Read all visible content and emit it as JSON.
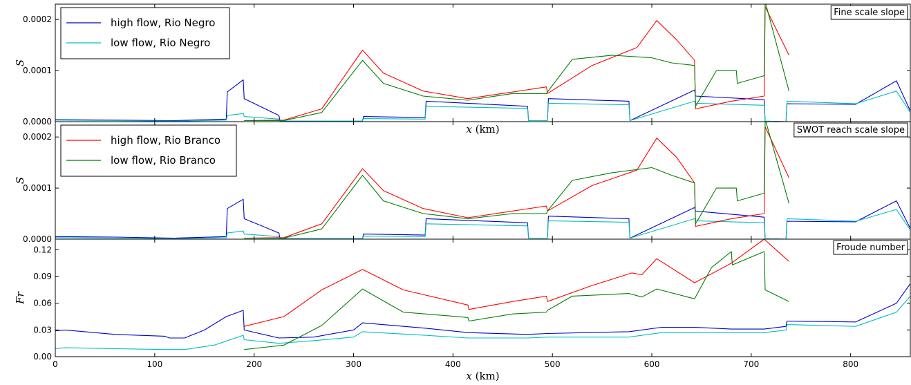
{
  "colors": {
    "high_negro": "#0000cc",
    "low_negro": "#00bfbf",
    "high_branco": "#ff0000",
    "low_branco": "#007f00"
  },
  "legend_top": [
    {
      "label": "high flow, Rio Negro",
      "color": "#0000cc"
    },
    {
      "label": "low flow, Rio Negro",
      "color": "#00bfbf"
    }
  ],
  "legend_mid": [
    {
      "label": "high flow, Rio Branco",
      "color": "#ff0000"
    },
    {
      "label": "low flow, Rio Branco",
      "color": "#007f00"
    }
  ],
  "chart_data": [
    {
      "type": "line",
      "title": "Fine scale slope",
      "xlabel": "x (km)",
      "ylabel": "S",
      "xlim": [
        0,
        860
      ],
      "ylim": [
        0,
        0.00023
      ],
      "yticks": [
        0.0,
        0.0001,
        0.0002
      ],
      "yticklabels": [
        "0.0000",
        "0.0001",
        "0.0002"
      ],
      "legend_placement": "top-left",
      "series": [
        {
          "name": "high flow, Rio Negro",
          "color": "#0000cc",
          "x": [
            0,
            60,
            120,
            172,
            173,
            189,
            190,
            225,
            226,
            309,
            310,
            372,
            373,
            475,
            476,
            495,
            496,
            577,
            578,
            643,
            644,
            713,
            714,
            735,
            736,
            805,
            846,
            860
          ],
          "y": [
            4e-06,
            3e-06,
            2e-06,
            5e-06,
            5.8e-05,
            8.2e-05,
            4.5e-05,
            1.2e-05,
            1e-06,
            1e-06,
            1e-05,
            8e-06,
            4e-05,
            3e-05,
            2e-06,
            2e-06,
            4.5e-05,
            4e-05,
            2e-06,
            6.2e-05,
            5e-05,
            4.3e-05,
            1e-06,
            0.0,
            3.5e-05,
            3.4e-05,
            8e-05,
            2.1e-05
          ]
        },
        {
          "name": "low flow, Rio Negro",
          "color": "#00bfbf",
          "x": [
            0,
            60,
            120,
            172,
            173,
            189,
            190,
            225,
            226,
            309,
            310,
            372,
            373,
            475,
            476,
            495,
            496,
            577,
            578,
            643,
            644,
            713,
            714,
            735,
            736,
            805,
            846,
            860
          ],
          "y": [
            3e-06,
            2e-06,
            1e-06,
            3e-06,
            1.2e-05,
            1.6e-05,
            1e-05,
            5e-06,
            1e-06,
            1e-06,
            6e-06,
            5e-06,
            3e-05,
            2.6e-05,
            2e-06,
            2e-06,
            3.6e-05,
            3.3e-05,
            2e-06,
            4e-05,
            3.6e-05,
            3.2e-05,
            1e-06,
            0.0,
            4e-05,
            3.5e-05,
            6e-05,
            1.8e-05
          ]
        },
        {
          "name": "high flow, Rio Branco",
          "color": "#ff0000",
          "x": [
            190,
            230,
            268,
            309,
            330,
            370,
            415,
            460,
            494,
            495,
            540,
            585,
            605,
            625,
            643,
            644,
            680,
            713,
            714,
            738
          ],
          "y": [
            2e-06,
            3e-06,
            2.5e-05,
            0.00014,
            9.5e-05,
            6e-05,
            4.5e-05,
            5.8e-05,
            6.8e-05,
            5.5e-05,
            0.00011,
            0.000145,
            0.000198,
            0.00016,
            0.00012,
            2.5e-05,
            4e-05,
            5e-05,
            0.000225,
            0.00013
          ]
        },
        {
          "name": "low flow, Rio Branco",
          "color": "#007f00",
          "x": [
            190,
            230,
            268,
            309,
            330,
            370,
            415,
            460,
            494,
            495,
            520,
            560,
            600,
            620,
            643,
            644,
            665,
            685,
            686,
            713,
            714,
            738
          ],
          "y": [
            2e-06,
            2e-06,
            1.8e-05,
            0.00012,
            7.5e-05,
            5e-05,
            4.2e-05,
            5.5e-05,
            5.5e-05,
            5.8e-05,
            0.000122,
            0.00013,
            0.000125,
            0.000115,
            0.00011,
            3e-05,
            0.0001,
            0.0001,
            7.5e-05,
            9e-05,
            0.000235,
            6e-05
          ]
        }
      ]
    },
    {
      "type": "line",
      "title": "SWOT reach scale slope",
      "xlabel": "x (km)",
      "ylabel": "S",
      "xlim": [
        0,
        860
      ],
      "ylim": [
        0,
        0.00023
      ],
      "yticks": [
        0.0,
        0.0001,
        0.0002
      ],
      "yticklabels": [
        "0.0000",
        "0.0001",
        "0.0002"
      ],
      "legend_placement": "top-left",
      "series": [
        {
          "name": "high flow, Rio Negro",
          "color": "#0000cc",
          "x": [
            0,
            60,
            120,
            172,
            173,
            189,
            190,
            225,
            226,
            309,
            310,
            372,
            373,
            475,
            476,
            495,
            496,
            577,
            578,
            643,
            644,
            713,
            714,
            735,
            736,
            805,
            846,
            860
          ],
          "y": [
            5e-06,
            4e-06,
            2e-06,
            5e-06,
            6e-05,
            7.8e-05,
            4e-05,
            1.2e-05,
            1e-06,
            1e-06,
            1e-05,
            8e-06,
            4e-05,
            3.2e-05,
            2e-06,
            2e-06,
            4.5e-05,
            4e-05,
            2e-06,
            6.2e-05,
            5.5e-05,
            4.3e-05,
            1e-06,
            0.0,
            3.5e-05,
            3.4e-05,
            7.5e-05,
            2.1e-05
          ]
        },
        {
          "name": "low flow, Rio Negro",
          "color": "#00bfbf",
          "x": [
            0,
            60,
            120,
            172,
            173,
            189,
            190,
            225,
            226,
            309,
            310,
            372,
            373,
            475,
            476,
            495,
            496,
            577,
            578,
            643,
            644,
            713,
            714,
            735,
            736,
            805,
            846,
            860
          ],
          "y": [
            3e-06,
            2e-06,
            1e-06,
            3e-06,
            1.2e-05,
            1.6e-05,
            1e-05,
            5e-06,
            1e-06,
            1e-06,
            6e-06,
            5e-06,
            3e-05,
            2.6e-05,
            2e-06,
            2e-06,
            3.6e-05,
            3.3e-05,
            2e-06,
            4e-05,
            3.6e-05,
            3.2e-05,
            1e-06,
            0.0,
            4e-05,
            3.5e-05,
            5.8e-05,
            1.8e-05
          ]
        },
        {
          "name": "high flow, Rio Branco",
          "color": "#ff0000",
          "x": [
            190,
            230,
            268,
            309,
            330,
            370,
            415,
            460,
            494,
            495,
            540,
            585,
            605,
            625,
            643,
            644,
            680,
            713,
            714,
            738
          ],
          "y": [
            2e-06,
            3e-06,
            3e-05,
            0.000138,
            9.5e-05,
            6e-05,
            4.2e-05,
            5.5e-05,
            6.5e-05,
            5.5e-05,
            0.000105,
            0.000135,
            0.000198,
            0.00016,
            0.00011,
            2.5e-05,
            4e-05,
            5e-05,
            0.00022,
            0.00012
          ]
        },
        {
          "name": "low flow, Rio Branco",
          "color": "#007f00",
          "x": [
            190,
            230,
            268,
            309,
            330,
            370,
            415,
            460,
            494,
            495,
            520,
            560,
            600,
            620,
            643,
            644,
            665,
            685,
            686,
            713,
            714,
            738
          ],
          "y": [
            2e-06,
            2e-06,
            2e-05,
            0.000125,
            7.5e-05,
            5e-05,
            4e-05,
            5e-05,
            5e-05,
            5.5e-05,
            0.000115,
            0.00013,
            0.00014,
            0.000125,
            0.00011,
            3e-05,
            0.0001,
            0.0001,
            7.5e-05,
            9e-05,
            0.000235,
            7e-05
          ]
        }
      ]
    },
    {
      "type": "line",
      "title": "Froude number",
      "xlabel": "x (km)",
      "ylabel": "Fr",
      "xlim": [
        0,
        860
      ],
      "ylim": [
        0,
        0.132
      ],
      "yticks": [
        0.0,
        0.03,
        0.06,
        0.09,
        0.12
      ],
      "yticklabels": [
        "0.00",
        "0.03",
        "0.06",
        "0.09",
        "0.12"
      ],
      "xticks": [
        0,
        100,
        200,
        300,
        400,
        500,
        600,
        700,
        800
      ],
      "xticklabels": [
        "0",
        "100",
        "200",
        "300",
        "400",
        "500",
        "600",
        "700",
        "800"
      ],
      "series": [
        {
          "name": "high flow, Rio Negro",
          "color": "#0000cc",
          "x": [
            0,
            10,
            60,
            110,
            115,
            130,
            150,
            172,
            189,
            190,
            225,
            260,
            300,
            309,
            372,
            415,
            475,
            495,
            577,
            610,
            643,
            680,
            713,
            735,
            736,
            805,
            846,
            860
          ],
          "y": [
            0.029,
            0.03,
            0.025,
            0.023,
            0.021,
            0.021,
            0.03,
            0.045,
            0.052,
            0.03,
            0.021,
            0.022,
            0.03,
            0.038,
            0.032,
            0.027,
            0.025,
            0.026,
            0.028,
            0.033,
            0.033,
            0.031,
            0.031,
            0.034,
            0.04,
            0.039,
            0.06,
            0.082
          ]
        },
        {
          "name": "low flow, Rio Negro",
          "color": "#00bfbf",
          "x": [
            0,
            10,
            60,
            110,
            130,
            160,
            189,
            190,
            225,
            260,
            300,
            309,
            372,
            415,
            475,
            495,
            577,
            610,
            643,
            713,
            735,
            736,
            805,
            846,
            860
          ],
          "y": [
            0.009,
            0.01,
            0.009,
            0.008,
            0.008,
            0.013,
            0.024,
            0.019,
            0.015,
            0.018,
            0.022,
            0.028,
            0.024,
            0.021,
            0.021,
            0.022,
            0.022,
            0.027,
            0.027,
            0.027,
            0.03,
            0.036,
            0.034,
            0.05,
            0.068
          ]
        },
        {
          "name": "high flow, Rio Branco",
          "color": "#ff0000",
          "x": [
            190,
            230,
            268,
            309,
            350,
            415,
            416,
            460,
            494,
            495,
            540,
            580,
            590,
            605,
            643,
            680,
            713,
            738
          ],
          "y": [
            0.034,
            0.045,
            0.075,
            0.098,
            0.075,
            0.058,
            0.053,
            0.062,
            0.068,
            0.062,
            0.08,
            0.094,
            0.092,
            0.11,
            0.083,
            0.105,
            0.132,
            0.107
          ]
        },
        {
          "name": "low flow, Rio Branco",
          "color": "#007f00",
          "x": [
            190,
            230,
            268,
            309,
            350,
            415,
            416,
            460,
            494,
            495,
            520,
            577,
            590,
            605,
            643,
            660,
            680,
            681,
            713,
            714,
            738
          ],
          "y": [
            0.008,
            0.013,
            0.035,
            0.076,
            0.05,
            0.044,
            0.04,
            0.048,
            0.05,
            0.052,
            0.068,
            0.071,
            0.067,
            0.076,
            0.065,
            0.1,
            0.118,
            0.103,
            0.118,
            0.075,
            0.062
          ]
        }
      ]
    }
  ]
}
